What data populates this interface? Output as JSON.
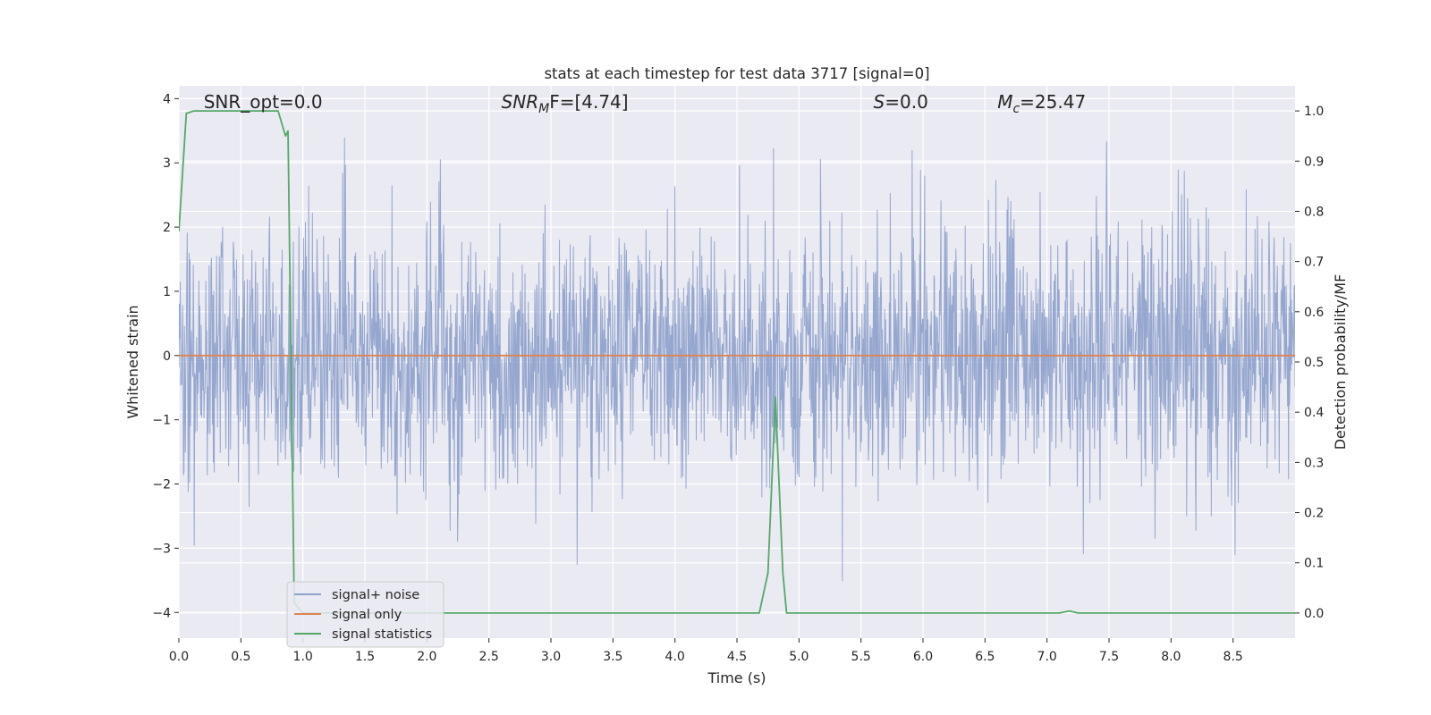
{
  "chart_data": {
    "type": "line",
    "title": "stats at each timestep for test data 3717 [signal=0]",
    "xlabel": "Time (s)",
    "ylabel": "Whitened strain",
    "y2label": "Detection probability/MF",
    "xlim": [
      0,
      9.0
    ],
    "ylim": [
      -4.4,
      4.2
    ],
    "y2lim": [
      -0.05,
      1.05
    ],
    "x_ticks": [
      "0.0",
      "0.5",
      "1.0",
      "1.5",
      "2.0",
      "2.5",
      "3.0",
      "3.5",
      "4.0",
      "4.5",
      "5.0",
      "5.5",
      "6.0",
      "6.5",
      "7.0",
      "7.5",
      "8.0",
      "8.5"
    ],
    "y_ticks": [
      "4",
      "3",
      "2",
      "1",
      "0",
      "−1",
      "−2",
      "−3",
      "−4"
    ],
    "y2_ticks": [
      "1.0",
      "0.9",
      "0.8",
      "0.7",
      "0.6",
      "0.5",
      "0.4",
      "0.3",
      "0.2",
      "0.1",
      "0.0"
    ],
    "grid": true,
    "legend_position": "bottom-left",
    "annotations": [
      {
        "pre": "SNR_opt=0.0",
        "base": "",
        "sub": "",
        "post": "",
        "x": 0.2
      },
      {
        "pre": "",
        "base": "SNR",
        "sub": "M",
        "post": "F=[4.74]",
        "x": 2.6
      },
      {
        "pre": "",
        "base": "S",
        "sub": "",
        "post": "=0.0",
        "x": 5.6
      },
      {
        "pre": "",
        "base": "M",
        "sub": "c",
        "post": "=25.47",
        "x": 6.6
      }
    ],
    "series": [
      {
        "name": "signal+ noise",
        "color": "#8da0cb",
        "axis": "left",
        "kind": "noise",
        "n": 2400,
        "sigma": 1.0,
        "seed": 3717
      },
      {
        "name": "signal only",
        "color": "#dd8452",
        "axis": "left",
        "x": [
          0,
          9.0
        ],
        "y": [
          0,
          0
        ]
      },
      {
        "name": "signal statistics",
        "color": "#55a868",
        "axis": "right",
        "x": [
          0.0,
          0.06,
          0.12,
          0.8,
          0.86,
          0.88,
          0.93,
          1.0,
          4.68,
          4.75,
          4.81,
          4.87,
          4.9,
          7.1,
          7.18,
          7.25,
          9.0
        ],
        "y": [
          0.76,
          0.995,
          1.0,
          1.0,
          0.95,
          0.96,
          0.02,
          0.0,
          0.0,
          0.08,
          0.43,
          0.08,
          0.0,
          0.0,
          0.004,
          0.0,
          0.0
        ]
      }
    ]
  }
}
